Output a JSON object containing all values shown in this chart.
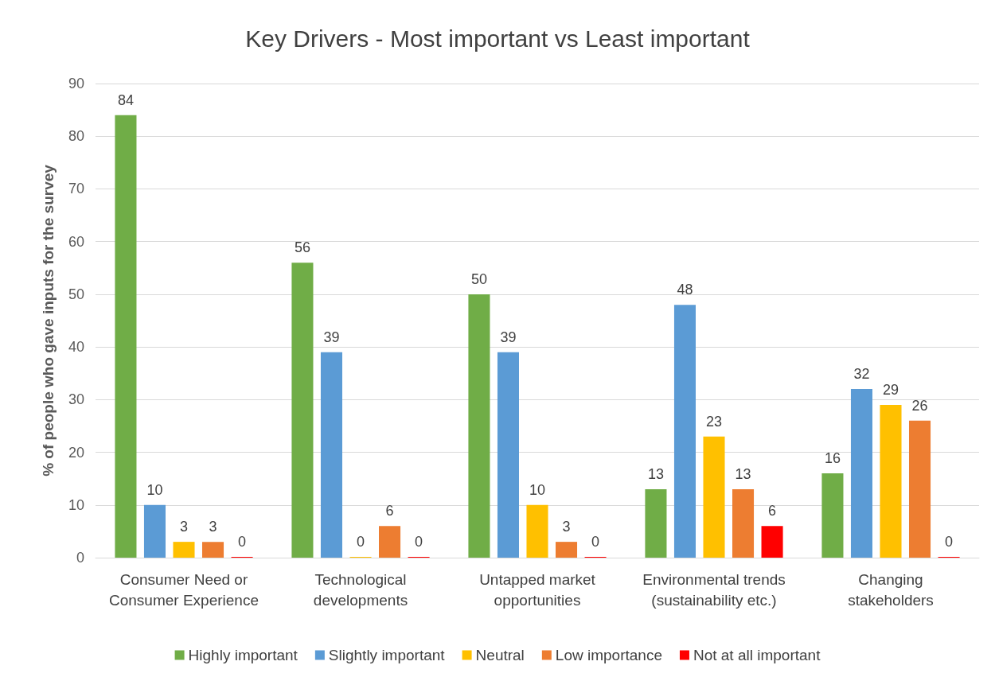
{
  "chart_data": {
    "type": "bar",
    "title": "Key Drivers - Most important vs Least important",
    "ylabel": "% of people who gave inputs for the survey",
    "categories": [
      "Consumer Need or\nConsumer Experience",
      "Technological\ndevelopments",
      "Untapped market\nopportunities",
      "Environmental trends\n(sustainability etc.)",
      "Changing\nstakeholders"
    ],
    "series": [
      {
        "name": "Highly important",
        "color": "#70ad47",
        "values": [
          84,
          56,
          50,
          13,
          16
        ]
      },
      {
        "name": "Slightly important",
        "color": "#5b9bd5",
        "values": [
          10,
          39,
          39,
          48,
          32
        ]
      },
      {
        "name": "Neutral",
        "color": "#ffc000",
        "values": [
          3,
          0,
          10,
          23,
          29
        ]
      },
      {
        "name": "Low importance",
        "color": "#ed7d31",
        "values": [
          3,
          6,
          3,
          13,
          26
        ]
      },
      {
        "name": "Not at all important",
        "color": "#ff0000",
        "values": [
          0,
          0,
          0,
          6,
          0
        ]
      }
    ],
    "ylim": [
      0,
      90
    ],
    "yticks": [
      0,
      10,
      20,
      30,
      40,
      50,
      60,
      70,
      80,
      90
    ],
    "grid": "y",
    "legend": "bottom",
    "data_labels": true
  }
}
